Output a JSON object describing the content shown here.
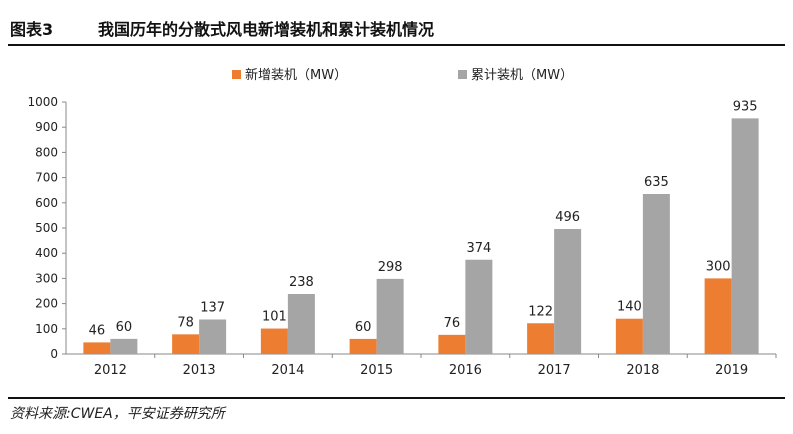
{
  "figure": {
    "label": "图表3",
    "title": "我国历年的分散式风电新增装机和累计装机情况",
    "source": "资料来源:CWEA，平安证券研究所"
  },
  "colors": {
    "new": "#ED7D31",
    "cumulative": "#A5A5A5",
    "axis": "#888888"
  },
  "chart_data": {
    "type": "bar",
    "categories": [
      "2012",
      "2013",
      "2014",
      "2015",
      "2016",
      "2017",
      "2018",
      "2019"
    ],
    "series": [
      {
        "name": "新增装机（MW）",
        "values": [
          46,
          78,
          101,
          60,
          76,
          122,
          140,
          300
        ]
      },
      {
        "name": "累计装机（MW）",
        "values": [
          60,
          137,
          238,
          298,
          374,
          496,
          635,
          935
        ]
      }
    ],
    "data_labels": {
      "new": [
        "46",
        "78",
        "101",
        "60",
        "76",
        "122",
        "140",
        "300"
      ],
      "cumulative": [
        "60",
        "137",
        "238",
        "298",
        "374",
        "496",
        "635",
        "935"
      ]
    },
    "yticks": [
      "0",
      "100",
      "200",
      "300",
      "400",
      "500",
      "600",
      "700",
      "800",
      "900",
      "1000"
    ],
    "ylim": [
      0,
      1000
    ],
    "legend": "top-center",
    "grid": false
  }
}
